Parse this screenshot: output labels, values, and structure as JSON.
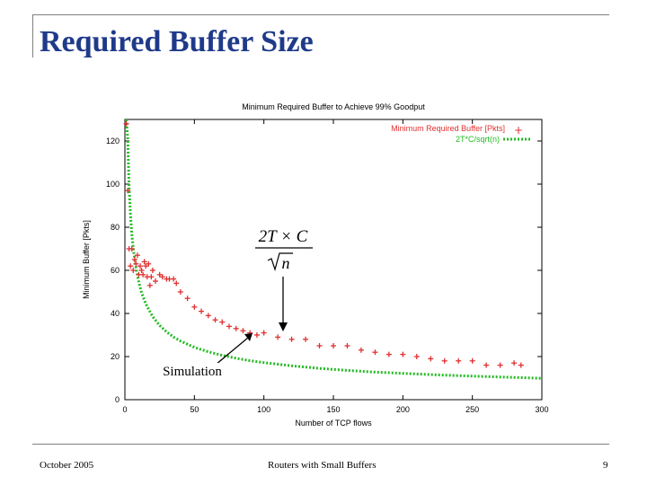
{
  "slide": {
    "title": "Required Buffer Size",
    "footer_left": "October 2005",
    "footer_center": "Routers with Small Buffers",
    "footer_right": "9"
  },
  "colors": {
    "title": "#1f3a8a",
    "frame": "#808080",
    "series_measured": "#e03030",
    "series_model": "#22bb22"
  },
  "annotations": {
    "formula_numerator": "2T × C",
    "formula_denominator": "n",
    "simulation_label": "Simulation"
  },
  "chart_data": {
    "type": "scatter",
    "title": "Minimum Required Buffer to Achieve 99% Goodput",
    "xlabel": "Number of TCP flows",
    "ylabel": "Minimum Buffer [Pkts]",
    "xlim": [
      0,
      300
    ],
    "ylim": [
      0,
      130
    ],
    "x_ticks": [
      0,
      50,
      100,
      150,
      200,
      250,
      300
    ],
    "y_ticks": [
      0,
      20,
      40,
      60,
      80,
      100,
      120
    ],
    "grid": false,
    "legend_position": "top-right",
    "series": [
      {
        "name": "Minimum Required Buffer [Pkts]",
        "marker": "plus",
        "x": [
          1,
          2,
          3,
          4,
          5,
          6,
          7,
          8,
          9,
          10,
          11,
          12,
          13,
          14,
          15,
          16,
          17,
          18,
          19,
          20,
          22,
          25,
          27,
          30,
          32,
          35,
          37,
          40,
          45,
          50,
          55,
          60,
          65,
          70,
          75,
          80,
          85,
          90,
          95,
          100,
          110,
          120,
          130,
          140,
          150,
          160,
          170,
          180,
          190,
          200,
          210,
          220,
          230,
          240,
          250,
          260,
          270,
          280,
          285
        ],
        "y": [
          128,
          97,
          70,
          62,
          70,
          60,
          65,
          63,
          67,
          58,
          62,
          60,
          58,
          64,
          62,
          57,
          63,
          53,
          57,
          60,
          55,
          58,
          57,
          56,
          56,
          56,
          54,
          50,
          47,
          43,
          41,
          39,
          37,
          36,
          34,
          33,
          32,
          31,
          30,
          31,
          29,
          28,
          28,
          25,
          25,
          25,
          23,
          22,
          21,
          21,
          20,
          19,
          18,
          18,
          18,
          16,
          16,
          17,
          16
        ]
      },
      {
        "name": "2T*C/sqrt(n)",
        "marker": "dotted-line",
        "x": [
          1,
          2,
          3,
          4,
          5,
          6,
          8,
          10,
          12,
          15,
          20,
          25,
          30,
          35,
          40,
          50,
          60,
          70,
          80,
          90,
          100,
          120,
          140,
          160,
          180,
          200,
          225,
          250,
          275,
          300
        ],
        "y": [
          130.0,
          121.6,
          99.3,
          86.0,
          76.9,
          70.2,
          60.8,
          54.4,
          49.6,
          44.4,
          38.5,
          34.4,
          31.4,
          29.1,
          27.2,
          24.3,
          22.2,
          20.6,
          19.2,
          18.1,
          17.2,
          15.7,
          14.5,
          13.6,
          12.8,
          12.2,
          11.5,
          10.9,
          10.4,
          9.9
        ]
      }
    ]
  }
}
